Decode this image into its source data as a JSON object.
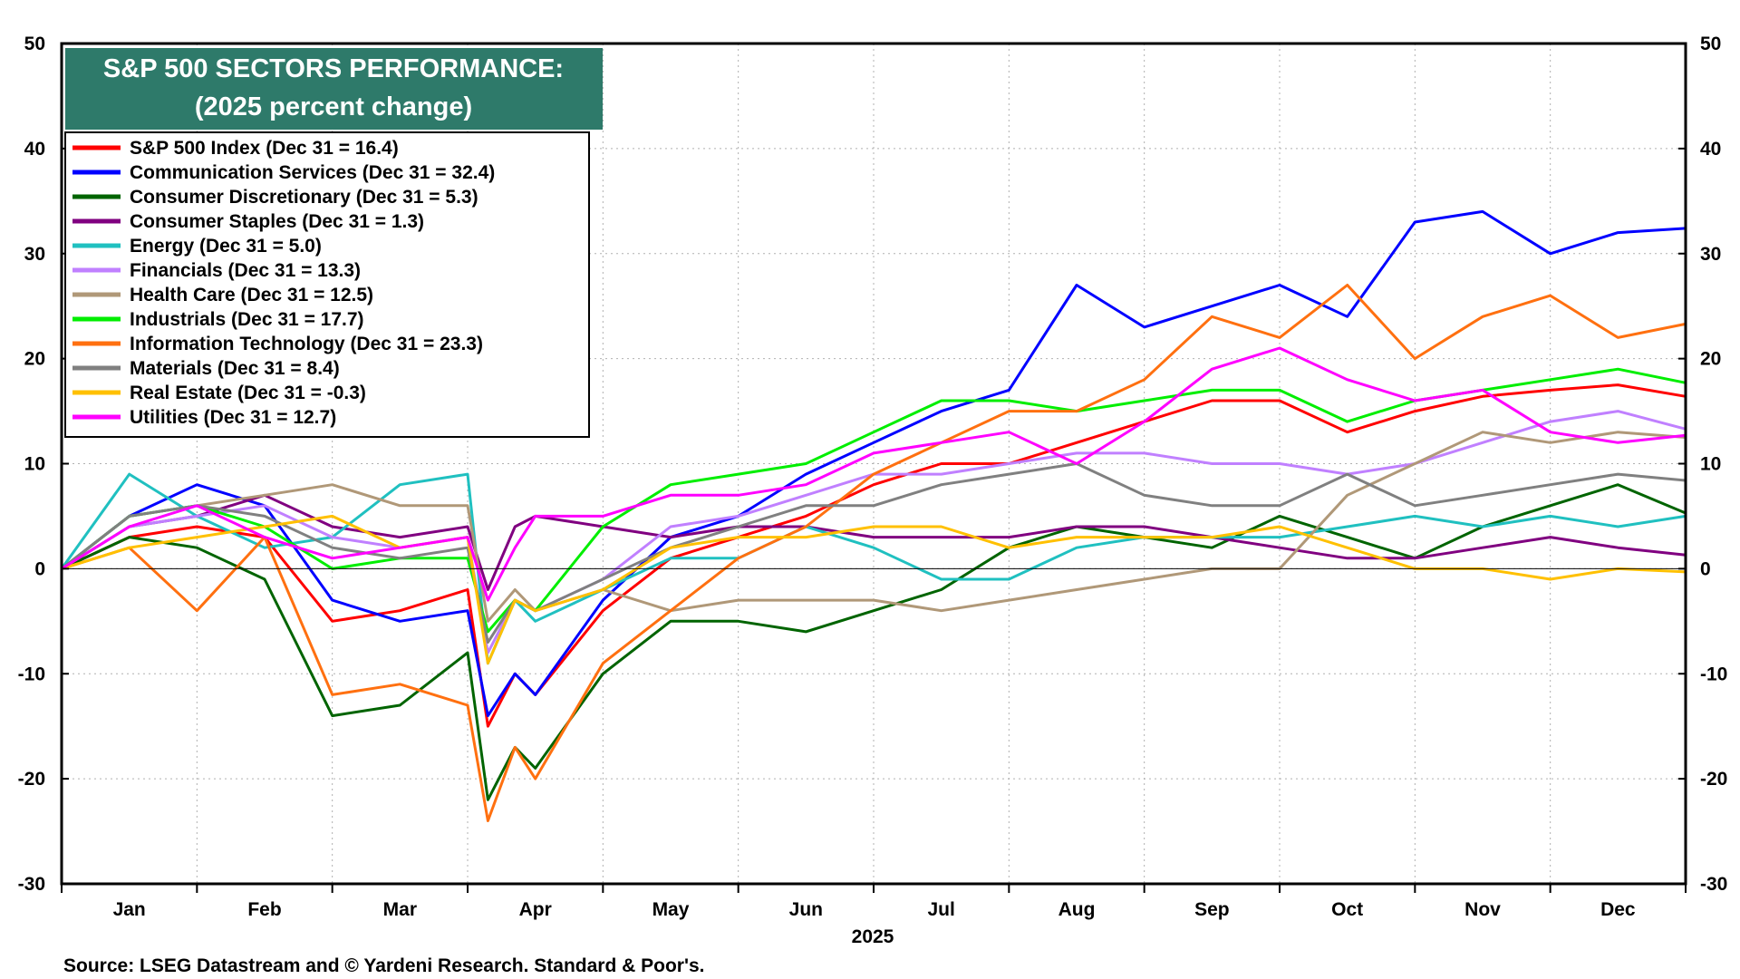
{
  "chart_data": {
    "type": "line",
    "title": "S&P 500 SECTORS PERFORMANCE:",
    "subtitle": "(2025 percent change)",
    "xlabel": "2025",
    "source": "Source: LSEG Datastream and © Yardeni Research. Standard & Poor's.",
    "ylim": [
      -30,
      50
    ],
    "yticks": [
      -30,
      -20,
      -10,
      0,
      10,
      20,
      30,
      40,
      50
    ],
    "months": [
      "Jan",
      "Feb",
      "Mar",
      "Apr",
      "May",
      "Jun",
      "Jul",
      "Aug",
      "Sep",
      "Oct",
      "Nov",
      "Dec"
    ],
    "grid": true,
    "legend_position": "top-left",
    "x": [
      0,
      0.5,
      1,
      1.5,
      2,
      2.5,
      3,
      3.15,
      3.35,
      3.5,
      4,
      4.5,
      5,
      5.5,
      6,
      6.5,
      7,
      7.5,
      8,
      8.5,
      9,
      9.5,
      10,
      10.5,
      11,
      11.5,
      12
    ],
    "series": [
      {
        "name": "S&P 500 Index (Dec 31 = 16.4)",
        "color": "#ff0000",
        "values": [
          0,
          3,
          4,
          3,
          -5,
          -4,
          -2,
          -15,
          -10,
          -12,
          -4,
          1,
          3,
          5,
          8,
          10,
          10,
          12,
          14,
          16,
          16,
          13,
          15,
          16.4,
          17,
          17.5,
          16.4
        ]
      },
      {
        "name": "Communication Services (Dec 31 = 32.4)",
        "color": "#0000ff",
        "values": [
          0,
          5,
          8,
          6,
          -3,
          -5,
          -4,
          -14,
          -10,
          -12,
          -3,
          3,
          5,
          9,
          12,
          15,
          17,
          27,
          23,
          25,
          27,
          24,
          33,
          34,
          30,
          32,
          32.4
        ]
      },
      {
        "name": "Consumer Discretionary (Dec 31 = 5.3)",
        "color": "#006400",
        "values": [
          0,
          3,
          2,
          -1,
          -14,
          -13,
          -8,
          -22,
          -17,
          -19,
          -10,
          -5,
          -5,
          -6,
          -4,
          -2,
          2,
          4,
          3,
          2,
          5,
          3,
          1,
          4,
          6,
          8,
          5.3
        ]
      },
      {
        "name": "Consumer Staples (Dec 31 = 1.3)",
        "color": "#800080",
        "values": [
          0,
          4,
          5,
          7,
          4,
          3,
          4,
          -2,
          4,
          5,
          4,
          3,
          4,
          4,
          3,
          3,
          3,
          4,
          4,
          3,
          2,
          1,
          1,
          2,
          3,
          2,
          1.3
        ]
      },
      {
        "name": "Energy (Dec 31 = 5.0)",
        "color": "#20c0c0",
        "values": [
          0,
          9,
          5,
          2,
          3,
          8,
          9,
          -9,
          -3,
          -5,
          -2,
          1,
          1,
          4,
          2,
          -1,
          -1,
          2,
          3,
          3,
          3,
          4,
          5,
          4,
          5,
          4,
          5.0
        ]
      },
      {
        "name": "Financials (Dec 31 = 13.3)",
        "color": "#c080ff",
        "values": [
          0,
          4,
          5,
          6,
          3,
          2,
          3,
          -8,
          -3,
          -4,
          -1,
          4,
          5,
          7,
          9,
          9,
          10,
          11,
          11,
          10,
          10,
          9,
          10,
          12,
          14,
          15,
          13.3
        ]
      },
      {
        "name": "Health Care (Dec 31 = 12.5)",
        "color": "#b09878",
        "values": [
          0,
          5,
          6,
          7,
          8,
          6,
          6,
          -5,
          -2,
          -4,
          -2,
          -4,
          -3,
          -3,
          -3,
          -4,
          -3,
          -2,
          -1,
          0,
          0,
          7,
          10,
          13,
          12,
          13,
          12.5
        ]
      },
      {
        "name": "Industrials (Dec 31 = 17.7)",
        "color": "#00ee00",
        "values": [
          0,
          5,
          6,
          4,
          0,
          1,
          1,
          -6,
          -3,
          -4,
          4,
          8,
          9,
          10,
          13,
          16,
          16,
          15,
          16,
          17,
          17,
          14,
          16,
          17,
          18,
          19,
          17.7
        ]
      },
      {
        "name": "Information Technology (Dec 31 = 23.3)",
        "color": "#ff7010",
        "values": [
          0,
          2,
          -4,
          3,
          -12,
          -11,
          -13,
          -24,
          -17,
          -20,
          -9,
          -4,
          1,
          4,
          9,
          12,
          15,
          15,
          18,
          24,
          22,
          27,
          20,
          24,
          26,
          22,
          23.3
        ]
      },
      {
        "name": "Materials (Dec 31 = 8.4)",
        "color": "#808080",
        "values": [
          0,
          5,
          6,
          5,
          2,
          1,
          2,
          -7,
          -3,
          -4,
          -1,
          2,
          4,
          6,
          6,
          8,
          9,
          10,
          7,
          6,
          6,
          9,
          6,
          7,
          8,
          9,
          8.4
        ]
      },
      {
        "name": "Real Estate (Dec 31 = -0.3)",
        "color": "#ffc000",
        "values": [
          0,
          2,
          3,
          4,
          5,
          2,
          3,
          -9,
          -3,
          -4,
          -2,
          2,
          3,
          3,
          4,
          4,
          2,
          3,
          3,
          3,
          4,
          2,
          0,
          0,
          -1,
          0,
          -0.3
        ]
      },
      {
        "name": "Utilities (Dec 31 = 12.7)",
        "color": "#ff00ff",
        "values": [
          0,
          4,
          6,
          3,
          1,
          2,
          3,
          -3,
          2,
          5,
          5,
          7,
          7,
          8,
          11,
          12,
          13,
          10,
          14,
          19,
          21,
          18,
          16,
          17,
          13,
          12,
          12.7
        ]
      }
    ]
  }
}
